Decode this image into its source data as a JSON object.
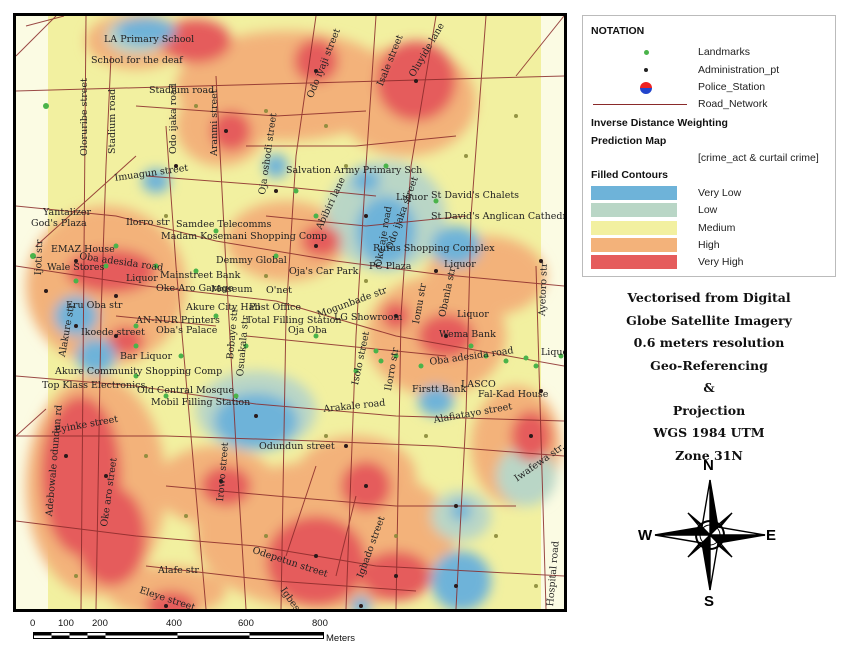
{
  "map": {
    "street_labels": [
      {
        "text": "LA Primary School",
        "name": "label-la-primary-school"
      },
      {
        "text": "School for the deaf",
        "name": "label-school-for-the-deaf"
      },
      {
        "text": "Stadium road",
        "name": "label-stadium-road"
      },
      {
        "text": "Odo iyaji street",
        "name": "label-odo-iyaji-street"
      },
      {
        "text": "Isale street",
        "name": "label-isale-street"
      },
      {
        "text": "Oluyide lane",
        "name": "label-oluyide-lane"
      },
      {
        "text": "Oloruribe street",
        "name": "label-oloruribe-street"
      },
      {
        "text": "Stadium road",
        "name": "label-stadium-road-2"
      },
      {
        "text": "Odo ijaka road",
        "name": "label-odo-ijaka-road"
      },
      {
        "text": "Aranmi street",
        "name": "label-aranmi-street"
      },
      {
        "text": "Imuagun street",
        "name": "label-imuagun-street"
      },
      {
        "text": "Oja oshodi street",
        "name": "label-oja-oshodi-street"
      },
      {
        "text": "Salvation Army Primary Sch",
        "name": "label-salvation-army"
      },
      {
        "text": "Odo ijaka street",
        "name": "label-odo-ijaka-street"
      },
      {
        "text": "Liquor",
        "name": "label-liquor-1"
      },
      {
        "text": "St David's Chalets",
        "name": "label-st-davids-chalets"
      },
      {
        "text": "Yantalizer",
        "name": "label-yantalizer"
      },
      {
        "text": "God's Plaza",
        "name": "label-gods-plaza"
      },
      {
        "text": "Ilorro str",
        "name": "label-ilorro-str"
      },
      {
        "text": "Samdee Telecomms",
        "name": "label-samdee-telecomms"
      },
      {
        "text": "Abibiri lane",
        "name": "label-abibiri-lane"
      },
      {
        "text": "St David's Anglican Cathedral",
        "name": "label-st-davids-cathedral"
      },
      {
        "text": "Madam Kosemani Shopping Comp",
        "name": "label-madam-kosemani"
      },
      {
        "text": "Oke aje road",
        "name": "label-oke-aje-road"
      },
      {
        "text": "EMAZ House",
        "name": "label-emaz-house"
      },
      {
        "text": "Oba adesida road",
        "name": "label-oba-adesida-road-1"
      },
      {
        "text": "Rufus Shopping Complex",
        "name": "label-rufus-shopping"
      },
      {
        "text": "Ijoti str",
        "name": "label-ijoti-str"
      },
      {
        "text": "Demmy Global",
        "name": "label-demmy-global"
      },
      {
        "text": "Wale Stores",
        "name": "label-wale-stores"
      },
      {
        "text": "PC Plaza",
        "name": "label-pc-plaza"
      },
      {
        "text": "Liquor",
        "name": "label-liquor-2"
      },
      {
        "text": "Liquor",
        "name": "label-liquor-3"
      },
      {
        "text": "Mainstreet Bank",
        "name": "label-mainstreet-bank"
      },
      {
        "text": "Oja's Car Park",
        "name": "label-ojas-car-park"
      },
      {
        "text": "Oke-Aro Garage",
        "name": "label-oke-aro-garage"
      },
      {
        "text": "Museum",
        "name": "label-museum"
      },
      {
        "text": "O'net",
        "name": "label-onet"
      },
      {
        "text": "Mogunbade str",
        "name": "label-mogunbade-str"
      },
      {
        "text": "Ayetoro str",
        "name": "label-ayetoro-str"
      },
      {
        "text": "Eru Oba str",
        "name": "label-eru-oba-str"
      },
      {
        "text": "Akure City Hall",
        "name": "label-akure-city-hall"
      },
      {
        "text": "Post Office",
        "name": "label-post-office"
      },
      {
        "text": "Iomu str",
        "name": "label-iomu-str"
      },
      {
        "text": "Obanla str",
        "name": "label-obanla-str"
      },
      {
        "text": "Liquor",
        "name": "label-liquor-4"
      },
      {
        "text": "AN-NUR Printers",
        "name": "label-an-nur-printers"
      },
      {
        "text": "Total Filling Station",
        "name": "label-total-filling-station"
      },
      {
        "text": "LG Showroom",
        "name": "label-lg-showroom"
      },
      {
        "text": "Wema Bank",
        "name": "label-wema-bank"
      },
      {
        "text": "Ikoede street",
        "name": "label-ikoede-street"
      },
      {
        "text": "Oba's Palace",
        "name": "label-obas-palace"
      },
      {
        "text": "Oja Oba",
        "name": "label-oja-oba"
      },
      {
        "text": "Alakure str",
        "name": "label-alakure-str"
      },
      {
        "text": "Bobaye str",
        "name": "label-bobaye-str"
      },
      {
        "text": "Oba adesida road",
        "name": "label-oba-adesida-road-2"
      },
      {
        "text": "Liquor",
        "name": "label-liquor-5"
      },
      {
        "text": "Bar Liquor",
        "name": "label-bar-liquor"
      },
      {
        "text": "Osuakala str",
        "name": "label-osuakala-str"
      },
      {
        "text": "Isolo street",
        "name": "label-isolo-street"
      },
      {
        "text": "Ilorro str",
        "name": "label-ilorro-str-2"
      },
      {
        "text": "LASCO",
        "name": "label-lasco"
      },
      {
        "text": "Akure Community Shopping Comp",
        "name": "label-akure-community"
      },
      {
        "text": "Firstt Bank",
        "name": "label-firstt-bank"
      },
      {
        "text": "Top Klass Electronics",
        "name": "label-top-klass"
      },
      {
        "text": "Fal-Kad House",
        "name": "label-fal-kad-house"
      },
      {
        "text": "Old Central Mosque",
        "name": "label-old-central-mosque"
      },
      {
        "text": "Mobil Filling Station",
        "name": "label-mobil-filling-station"
      },
      {
        "text": "Arakale road",
        "name": "label-arakale-road"
      },
      {
        "text": "Alafiatayo street",
        "name": "label-alafiatayo-street"
      },
      {
        "text": "Eyinke street",
        "name": "label-eyinke-street"
      },
      {
        "text": "Odundun street",
        "name": "label-odundun-street"
      },
      {
        "text": "Adebowale odundun rd",
        "name": "label-adebowale-odundun-rd"
      },
      {
        "text": "Iwafewa str.",
        "name": "label-iwafewa-str"
      },
      {
        "text": "Oke aro street",
        "name": "label-oke-aro-street"
      },
      {
        "text": "Irowo street",
        "name": "label-irowo-street"
      },
      {
        "text": "Odepetun street",
        "name": "label-odepetun-street"
      },
      {
        "text": "Igbado street",
        "name": "label-igbado-street"
      },
      {
        "text": "Alafe str",
        "name": "label-alafe-str"
      },
      {
        "text": "Igbesaye str",
        "name": "label-igbesaye-str"
      },
      {
        "text": "Eleye street",
        "name": "label-eleye-street"
      },
      {
        "text": "Hospital road",
        "name": "label-hospital-road"
      }
    ]
  },
  "legend": {
    "title": "NOTATION",
    "items": [
      {
        "label": "Landmarks",
        "symbol": "green-dot-icon"
      },
      {
        "label": "Administration_pt",
        "symbol": "black-dot-icon"
      },
      {
        "label": "Police_Station",
        "symbol": "police-station-icon"
      },
      {
        "label": "Road_Network",
        "symbol": "road-line-icon"
      }
    ],
    "idw_title": "Inverse Distance Weighting",
    "prediction_title": "Prediction Map",
    "prediction_subtitle": "[crime_act & curtail crime]",
    "contours_title": "Filled Contours",
    "contours": [
      {
        "label": "Very Low",
        "color": "#6eb3d9"
      },
      {
        "label": "Low",
        "color": "#b9d6c6"
      },
      {
        "label": "Medium",
        "color": "#f2f0a0"
      },
      {
        "label": "High",
        "color": "#f3b27a"
      },
      {
        "label": "Very High",
        "color": "#e55c5c"
      }
    ]
  },
  "projection_note": {
    "lines": [
      "Vectorised from Digital",
      "Globe Satellite Imagery",
      "0.6 meters resolution",
      "Geo-Referencing",
      "&",
      "Projection",
      "WGS 1984 UTM",
      "Zone 31N"
    ]
  },
  "compass": {
    "n": "N",
    "s": "S",
    "e": "E",
    "w": "W"
  },
  "scalebar": {
    "ticks": [
      "0",
      "100",
      "200",
      "400",
      "600",
      "800"
    ],
    "unit": "Meters"
  },
  "colors": {
    "very_low": "#6eb3d9",
    "low": "#b9d6c6",
    "medium": "#f2f0a0",
    "high": "#f3b27a",
    "very_high": "#e55c5c",
    "road": "#8a2a2a"
  }
}
